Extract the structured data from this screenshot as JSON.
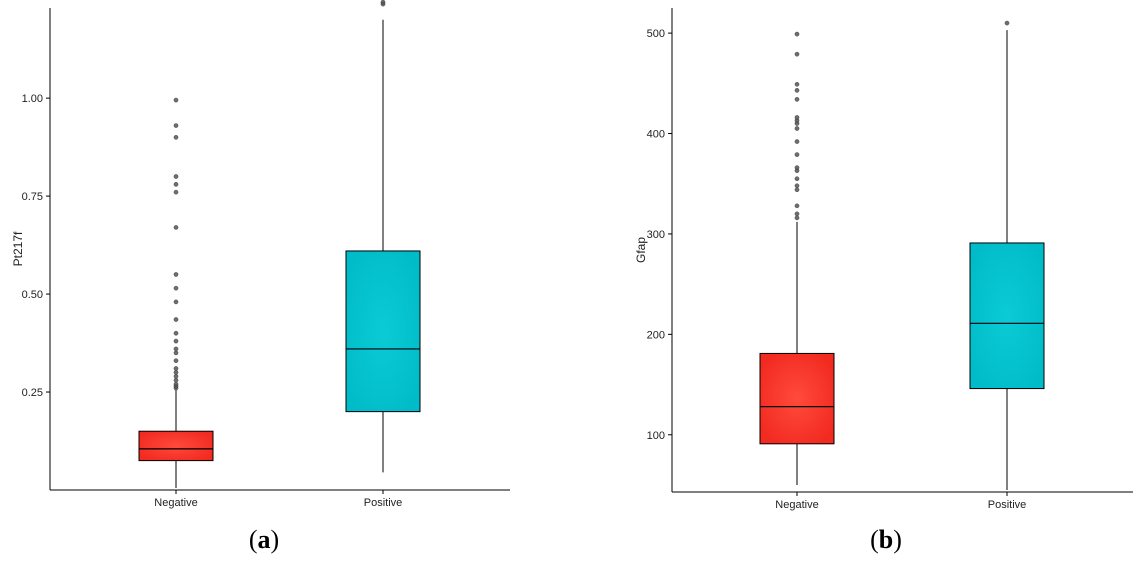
{
  "chart_data": [
    {
      "type": "box",
      "panel_label": "a",
      "ylabel": "Pt217f",
      "categories": [
        "Negative",
        "Positive"
      ],
      "y_ticks": [
        0.25,
        0.5,
        0.75,
        1.0
      ],
      "y_tick_labels": [
        "0.25",
        "0.50",
        "0.75",
        "1.00"
      ],
      "ylim": [
        0.0,
        1.23
      ],
      "grid": false,
      "boxes": [
        {
          "category": "Negative",
          "color": "#f8352b",
          "whisker_low": 0.005,
          "q1": 0.075,
          "median": 0.105,
          "q3": 0.15,
          "whisker_high": 0.255,
          "outliers": [
            0.26,
            0.265,
            0.27,
            0.28,
            0.29,
            0.3,
            0.31,
            0.33,
            0.35,
            0.36,
            0.38,
            0.4,
            0.435,
            0.48,
            0.515,
            0.55,
            0.67,
            0.76,
            0.78,
            0.8,
            0.9,
            0.93,
            0.995
          ]
        },
        {
          "category": "Positive",
          "color": "#00c1cd",
          "whisker_low": 0.045,
          "q1": 0.2,
          "median": 0.36,
          "q3": 0.61,
          "whisker_high": 1.2,
          "outliers": [
            1.24,
            1.245
          ]
        }
      ]
    },
    {
      "type": "box",
      "panel_label": "b",
      "ylabel": "Gfap",
      "categories": [
        "Negative",
        "Positive"
      ],
      "y_ticks": [
        100,
        200,
        300,
        400,
        500
      ],
      "y_tick_labels": [
        "100",
        "200",
        "300",
        "400",
        "500"
      ],
      "ylim": [
        43,
        525
      ],
      "grid": false,
      "boxes": [
        {
          "category": "Negative",
          "color": "#f8352b",
          "whisker_low": 50,
          "q1": 91,
          "median": 128,
          "q3": 181,
          "whisker_high": 312,
          "outliers": [
            316,
            320,
            328,
            344,
            348,
            355,
            363,
            366,
            379,
            392,
            405,
            410,
            413,
            416,
            434,
            443,
            449,
            479,
            499
          ]
        },
        {
          "category": "Positive",
          "color": "#00c1cd",
          "whisker_low": 45,
          "q1": 146,
          "median": 211,
          "q3": 291,
          "whisker_high": 503,
          "outliers": [
            510
          ]
        }
      ]
    }
  ]
}
